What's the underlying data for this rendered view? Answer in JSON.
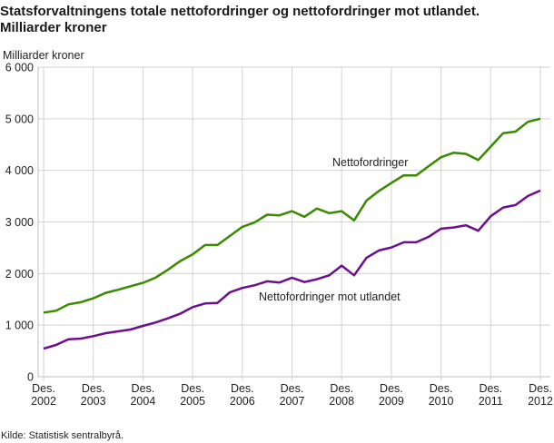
{
  "chart_data": {
    "type": "line",
    "title_line1": "Statsforvaltningens totale nettofordringer og nettofordringer mot utlandet.",
    "title_line2": "Milliarder kroner",
    "ylabel": "Milliarder kroner",
    "ylim": [
      0,
      6000
    ],
    "yticks": [
      0,
      1000,
      2000,
      3000,
      4000,
      5000,
      6000
    ],
    "ytick_labels": [
      "0",
      "1 000",
      "2 000",
      "3 000",
      "4 000",
      "5 000",
      "6 000"
    ],
    "xtick_labels": [
      [
        "Des.",
        "2002"
      ],
      [
        "Des.",
        "2003"
      ],
      [
        "Des.",
        "2004"
      ],
      [
        "Des.",
        "2005"
      ],
      [
        "Des.",
        "2006"
      ],
      [
        "Des.",
        "2007"
      ],
      [
        "Des.",
        "2008"
      ],
      [
        "Des.",
        "2009"
      ],
      [
        "Des.",
        "2010"
      ],
      [
        "Des.",
        "2011"
      ],
      [
        "Des.",
        "2012"
      ]
    ],
    "x_range": [
      "Des. 2002",
      "Des. 2012"
    ],
    "frequency": "quarterly",
    "grid": true,
    "series": [
      {
        "name": "Nettofordringer",
        "color": "#3a8a00",
        "values": [
          1244,
          1280,
          1403,
          1444,
          1520,
          1625,
          1685,
          1755,
          1820,
          1919,
          2072,
          2241,
          2371,
          2553,
          2553,
          2729,
          2905,
          2993,
          3140,
          3128,
          3210,
          3100,
          3260,
          3170,
          3210,
          3030,
          3415,
          3600,
          3755,
          3905,
          3900,
          4080,
          4255,
          4340,
          4320,
          4200,
          4460,
          4720,
          4750,
          4940,
          5000
        ]
      },
      {
        "name": "Nettofordringer mot utlandet",
        "color": "#6b0f8e",
        "values": [
          546,
          616,
          727,
          739,
          786,
          845,
          880,
          915,
          986,
          1050,
          1132,
          1221,
          1350,
          1420,
          1431,
          1637,
          1720,
          1773,
          1849,
          1826,
          1919,
          1836,
          1890,
          1966,
          2153,
          1966,
          2306,
          2447,
          2505,
          2606,
          2606,
          2711,
          2870,
          2893,
          2935,
          2829,
          3111,
          3280,
          3327,
          3504,
          3609
        ]
      }
    ],
    "source": "Kilde: Statistisk sentralbyrå."
  }
}
